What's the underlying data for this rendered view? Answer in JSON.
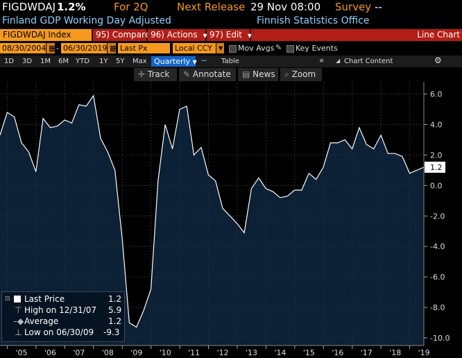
{
  "header": {
    "ticker": "FIGDWDAJ",
    "last_value": "1.2%",
    "period": "For 2Q",
    "next_release_label": "Next Release",
    "next_release_value": "29 Nov 08:00",
    "survey_label": "Survey",
    "survey_value": "--",
    "description": "Finland GDP Working Day Adjusted",
    "source": "Finnish Statistics Office"
  },
  "toolbar": {
    "security": "FIGDWDAJ Index",
    "compare": "95) Compare",
    "actions": "96) Actions",
    "edit": "97) Edit",
    "chart_type": "Line Chart"
  },
  "settings": {
    "start_date": "08/30/2004",
    "end_date": "06/30/2019",
    "field": "Last Px",
    "currency": "Local CCY",
    "mov_avgs": "Mov Avgs",
    "key_events": "Key Events"
  },
  "ranges": {
    "items": [
      "1D",
      "3D",
      "1M",
      "6M",
      "YTD",
      "1Y",
      "5Y",
      "Max"
    ],
    "frequency": "Quarterly",
    "table": "Table",
    "chart_content": "Chart Content"
  },
  "tools": {
    "track": "Track",
    "annotate": "Annotate",
    "news": "News",
    "zoom": "Zoom"
  },
  "legend": {
    "last_price_label": "Last Price",
    "last_price_value": "1.2",
    "high_label": "High on 12/31/07",
    "high_value": "5.9",
    "average_label": "Average",
    "average_value": "1.2",
    "low_label": "Low on 06/30/09",
    "low_value": "-9.3"
  },
  "colors": {
    "orange": "#f59a1e",
    "red": "#b21e16",
    "fill": "#0c2136",
    "line": "#ffffff",
    "grid": "#4a4a4a"
  },
  "chart_data": {
    "type": "area",
    "title": "",
    "xlabel": "",
    "ylabel": "",
    "ylim": [
      -10.5,
      6.8
    ],
    "yticks": [
      6.0,
      4.0,
      2.0,
      0.0,
      -2.0,
      -4.0,
      -6.0,
      -8.0,
      -10.0
    ],
    "ytick_labels": [
      "6.0",
      "4.0",
      "2.0",
      "0.0",
      "-2.0",
      "-4.0",
      "-6.0",
      "-8.0",
      "-10.0"
    ],
    "xtick_labels": [
      "'05",
      "'06",
      "'07",
      "'08",
      "'09",
      "'10",
      "'11",
      "'12",
      "'13",
      "'14",
      "'15",
      "'16",
      "'17",
      "'18",
      "'19"
    ],
    "last_label": "1.2",
    "x": [
      "2004-09-30",
      "2004-12-31",
      "2005-03-31",
      "2005-06-30",
      "2005-09-30",
      "2005-12-31",
      "2006-03-31",
      "2006-06-30",
      "2006-09-30",
      "2006-12-31",
      "2007-03-31",
      "2007-06-30",
      "2007-09-30",
      "2007-12-31",
      "2008-03-31",
      "2008-06-30",
      "2008-09-30",
      "2008-12-31",
      "2009-03-31",
      "2009-06-30",
      "2009-09-30",
      "2009-12-31",
      "2010-03-31",
      "2010-06-30",
      "2010-09-30",
      "2010-12-31",
      "2011-03-31",
      "2011-06-30",
      "2011-09-30",
      "2011-12-31",
      "2012-03-31",
      "2012-06-30",
      "2012-09-30",
      "2012-12-31",
      "2013-03-31",
      "2013-06-30",
      "2013-09-30",
      "2013-12-31",
      "2014-03-31",
      "2014-06-30",
      "2014-09-30",
      "2014-12-31",
      "2015-03-31",
      "2015-06-30",
      "2015-09-30",
      "2015-12-31",
      "2016-03-31",
      "2016-06-30",
      "2016-09-30",
      "2016-12-31",
      "2017-03-31",
      "2017-06-30",
      "2017-09-30",
      "2017-12-31",
      "2018-03-31",
      "2018-06-30",
      "2018-09-30",
      "2018-12-31",
      "2019-03-31",
      "2019-06-30"
    ],
    "values": [
      3.3,
      4.8,
      4.5,
      2.8,
      2.2,
      0.9,
      4.4,
      3.8,
      3.9,
      4.3,
      4.1,
      5.3,
      5.2,
      5.9,
      3.1,
      2.2,
      1.0,
      -3.5,
      -9.0,
      -9.3,
      -8.2,
      -6.8,
      0.3,
      4.0,
      2.4,
      5.0,
      5.2,
      2.0,
      2.5,
      0.7,
      0.3,
      -1.5,
      -2.0,
      -2.5,
      -3.1,
      -0.2,
      0.5,
      -0.2,
      -0.4,
      -0.8,
      -0.7,
      -0.3,
      -0.3,
      0.8,
      0.4,
      1.2,
      2.8,
      2.8,
      3.0,
      2.4,
      3.8,
      2.7,
      2.4,
      3.3,
      2.1,
      2.1,
      1.9,
      0.8,
      1.0,
      1.2
    ]
  }
}
